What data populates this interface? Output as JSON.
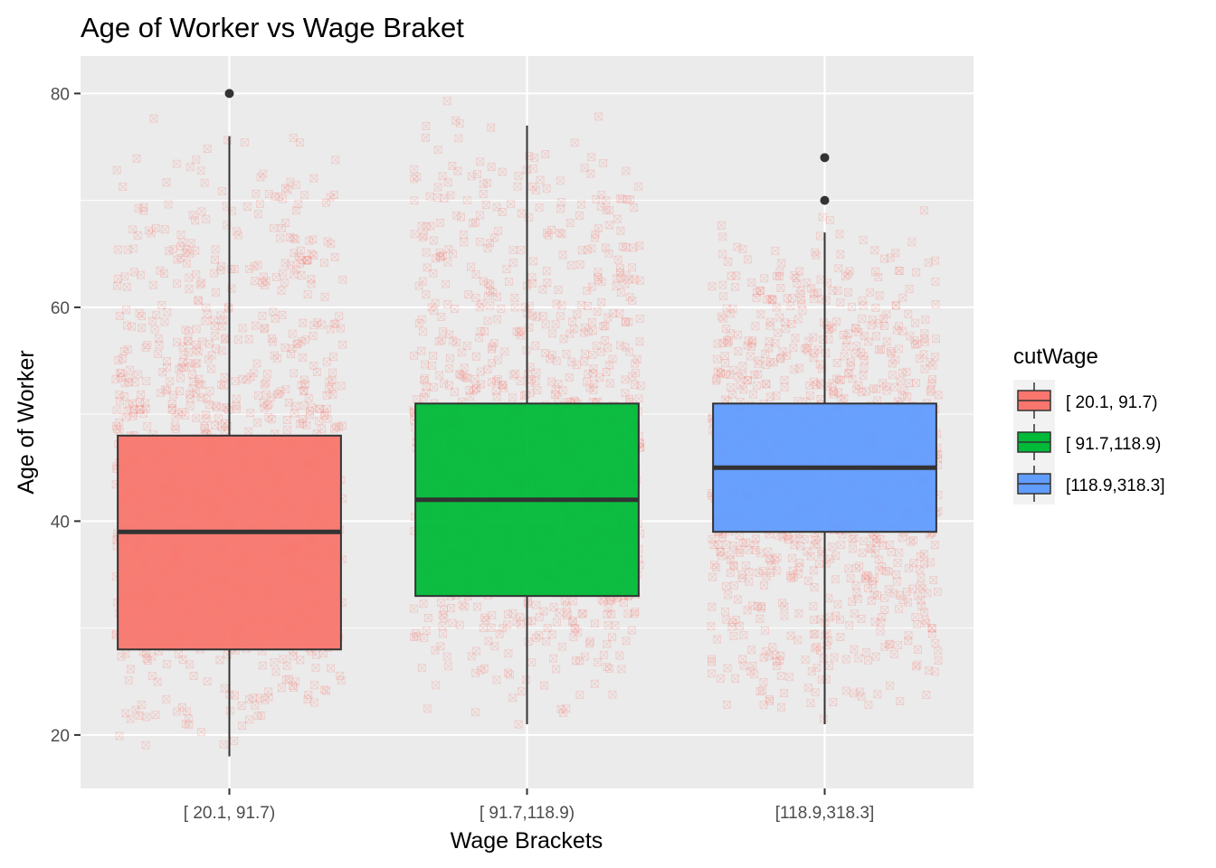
{
  "chart_data": {
    "type": "boxplot",
    "title": "Age of Worker vs Wage Braket",
    "xlabel": "Wage Brackets",
    "ylabel": "Age of Worker",
    "ylim": [
      15,
      83.5
    ],
    "yticks": [
      20,
      40,
      60,
      80
    ],
    "grid": true,
    "categories": [
      "[ 20.1, 91.7)",
      "[ 91.7,118.9)",
      "[118.9,318.3]"
    ],
    "boxes": [
      {
        "category": "[ 20.1, 91.7)",
        "min": 18,
        "q1": 28,
        "median": 39,
        "q3": 48,
        "max": 76,
        "outliers": [
          80
        ],
        "color": "#F8766D",
        "jitter_count": 1000
      },
      {
        "category": "[ 91.7,118.9)",
        "min": 21,
        "q1": 33,
        "median": 42,
        "q3": 51,
        "max": 77,
        "outliers": [],
        "color": "#00BA38",
        "jitter_count": 1000
      },
      {
        "category": "[118.9,318.3]",
        "min": 21,
        "q1": 39,
        "median": 45,
        "q3": 51,
        "max": 67,
        "outliers": [
          70,
          74
        ],
        "color": "#619CFF",
        "jitter_count": 1000
      }
    ],
    "jitter_color": "#F8766D",
    "legend": {
      "title": "cutWage",
      "position": "right",
      "entries": [
        {
          "label": "[ 20.1, 91.7)",
          "color": "#F8766D"
        },
        {
          "label": "[ 91.7,118.9)",
          "color": "#00BA38"
        },
        {
          "label": "[118.9,318.3]",
          "color": "#619CFF"
        }
      ]
    },
    "colors": {
      "panel": "#EBEBEB",
      "grid": "#FFFFFF",
      "box_line": "#333333"
    }
  }
}
